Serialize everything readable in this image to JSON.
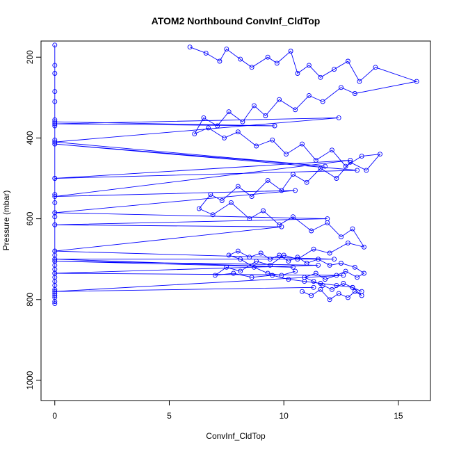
{
  "chart_data": {
    "type": "line",
    "style": "points-and-lines",
    "title": "ATOM2 Northbound ConvInf_CldTop",
    "xlabel": "ConvInf_CldTop",
    "ylabel": "Pressure (mbar)",
    "xlim": [
      -0.6,
      16.4
    ],
    "ylim": [
      1050,
      160
    ],
    "y_reversed": true,
    "x_ticks": [
      0,
      5,
      10,
      15
    ],
    "y_ticks": [
      200,
      400,
      600,
      800,
      1000
    ],
    "grid": false,
    "legend": "none",
    "series_color": "#0000ff",
    "series": [
      {
        "x": [
          0,
          0,
          0,
          0,
          0,
          0,
          0,
          0,
          0,
          0,
          0,
          0,
          0,
          0,
          0,
          0,
          0,
          0,
          0,
          0,
          0,
          0,
          0,
          0,
          0,
          0,
          0,
          0,
          0,
          0,
          0,
          0
        ],
        "y": [
          170,
          220,
          240,
          285,
          310,
          355,
          365,
          370,
          405,
          415,
          500,
          540,
          560,
          585,
          595,
          615,
          680,
          690,
          700,
          705,
          715,
          725,
          735,
          745,
          755,
          765,
          775,
          785,
          790,
          795,
          805,
          810
        ]
      },
      {
        "x": [
          0,
          9.6,
          0,
          12.4,
          0,
          11.8,
          0,
          13.2,
          0,
          12.9,
          0,
          10.5,
          0,
          11.9,
          0,
          9.9,
          0,
          12.2,
          0,
          10.4,
          0,
          11.5,
          0,
          12.6,
          0,
          11.3
        ],
        "y": [
          360,
          370,
          365,
          350,
          410,
          470,
          415,
          480,
          500,
          455,
          545,
          530,
          585,
          600,
          615,
          620,
          680,
          700,
          700,
          720,
          705,
          715,
          735,
          740,
          780,
          770
        ]
      },
      {
        "x": [
          5.9,
          6.6,
          7.2,
          7.5,
          8.1,
          8.6,
          9.3,
          9.7,
          10.3,
          10.6,
          11.1,
          11.6,
          12.2,
          12.8,
          13.3,
          14.0,
          15.8,
          13.1,
          12.5,
          11.7,
          11.1,
          10.5,
          9.8,
          9.2,
          8.7,
          8.2,
          7.6,
          7.1,
          6.5,
          6.1,
          6.7,
          7.4,
          8.0,
          8.8,
          9.5,
          10.1,
          10.8,
          11.4,
          12.1,
          12.7,
          13.4,
          14.2,
          13.6,
          12.9,
          12.3,
          11.6,
          11.0,
          10.4,
          9.9,
          9.3,
          8.6,
          8.0,
          7.3,
          6.8,
          6.3,
          6.9,
          7.7,
          8.5,
          9.1,
          9.8,
          10.4,
          11.2,
          11.9,
          12.5,
          13.0,
          13.5,
          12.8,
          12.0,
          11.3,
          10.6,
          10.0,
          9.4,
          8.8,
          8.1,
          7.5,
          7.0,
          7.8,
          8.6,
          9.5,
          10.2,
          10.9,
          11.6,
          12.3,
          13.0,
          13.4
        ],
        "y": [
          175,
          190,
          210,
          180,
          205,
          225,
          200,
          215,
          185,
          240,
          220,
          250,
          230,
          210,
          260,
          225,
          260,
          290,
          275,
          310,
          295,
          330,
          305,
          345,
          320,
          360,
          335,
          370,
          350,
          390,
          375,
          400,
          385,
          420,
          405,
          440,
          415,
          455,
          430,
          470,
          445,
          440,
          480,
          460,
          500,
          475,
          510,
          490,
          530,
          505,
          545,
          520,
          555,
          540,
          575,
          590,
          560,
          600,
          580,
          615,
          595,
          630,
          610,
          645,
          625,
          670,
          660,
          685,
          675,
          700,
          690,
          715,
          705,
          730,
          720,
          740,
          735,
          745,
          740,
          750,
          755,
          760,
          765,
          770,
          780
        ]
      },
      {
        "x": [
          10.8,
          11.2,
          11.6,
          12.0,
          12.4,
          12.8,
          13.1,
          13.4,
          13.0,
          12.6,
          12.1,
          11.7,
          11.3,
          10.9,
          11.4,
          11.8,
          12.3,
          12.7,
          13.2,
          13.5,
          13.1,
          12.5,
          12.0,
          11.5,
          11.0,
          10.6,
          10.2,
          9.8,
          9.4,
          9.0,
          8.5,
          8.0,
          7.6,
          8.1,
          8.7,
          9.3,
          9.9,
          10.5
        ],
        "y": [
          780,
          790,
          775,
          800,
          785,
          795,
          780,
          790,
          770,
          760,
          775,
          765,
          755,
          745,
          735,
          750,
          740,
          730,
          745,
          735,
          720,
          710,
          715,
          700,
          710,
          695,
          705,
          690,
          700,
          685,
          695,
          680,
          690,
          700,
          720,
          735,
          740,
          730
        ]
      }
    ]
  }
}
